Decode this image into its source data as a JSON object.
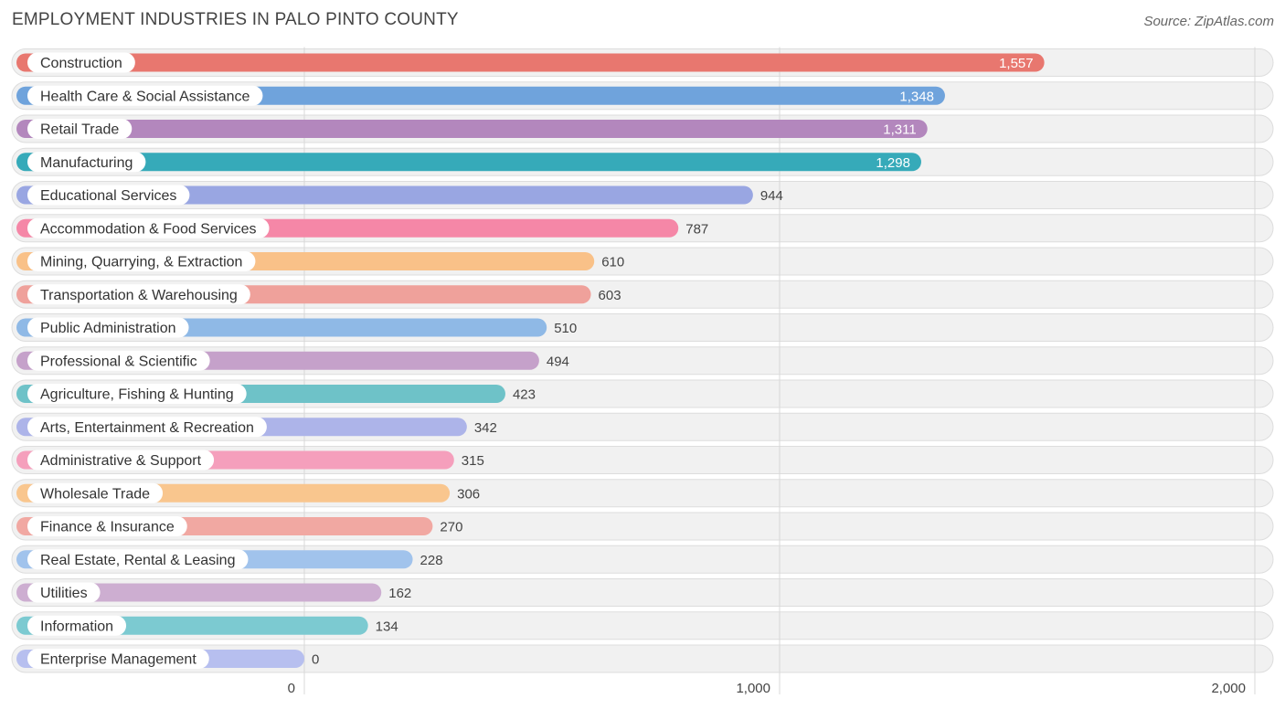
{
  "title": "EMPLOYMENT INDUSTRIES IN PALO PINTO COUNTY",
  "source": "Source: ZipAtlas.com",
  "chart_data": {
    "type": "bar",
    "orientation": "horizontal",
    "title": "EMPLOYMENT INDUSTRIES IN PALO PINTO COUNTY",
    "xlim": [
      0,
      2000
    ],
    "ticks": [
      0,
      1000,
      2000
    ],
    "tick_labels": [
      "0",
      "1,000",
      "2,000"
    ],
    "grid": true,
    "categories": [
      "Construction",
      "Health Care & Social Assistance",
      "Retail Trade",
      "Manufacturing",
      "Educational Services",
      "Accommodation & Food Services",
      "Mining, Quarrying, & Extraction",
      "Transportation & Warehousing",
      "Public Administration",
      "Professional & Scientific",
      "Agriculture, Fishing & Hunting",
      "Arts, Entertainment & Recreation",
      "Administrative & Support",
      "Wholesale Trade",
      "Finance & Insurance",
      "Real Estate, Rental & Leasing",
      "Utilities",
      "Information",
      "Enterprise Management"
    ],
    "values": [
      1557,
      1348,
      1311,
      1298,
      944,
      787,
      610,
      603,
      510,
      494,
      423,
      342,
      315,
      306,
      270,
      228,
      162,
      134,
      0
    ],
    "value_labels": [
      "1,557",
      "1,348",
      "1,311",
      "1,298",
      "944",
      "787",
      "610",
      "603",
      "510",
      "494",
      "423",
      "342",
      "315",
      "306",
      "270",
      "228",
      "162",
      "134",
      "0"
    ],
    "colors": [
      "#e8776f",
      "#6fa3dc",
      "#b387bd",
      "#36aab9",
      "#99a6e2",
      "#f587a7",
      "#f9c188",
      "#efa19b",
      "#8fb9e6",
      "#c5a1ca",
      "#6ec2c8",
      "#adb4e9",
      "#f59fbc",
      "#f9c68e",
      "#f1a8a2",
      "#a1c3ec",
      "#cdaed1",
      "#7ccad1",
      "#b7bfef"
    ]
  }
}
